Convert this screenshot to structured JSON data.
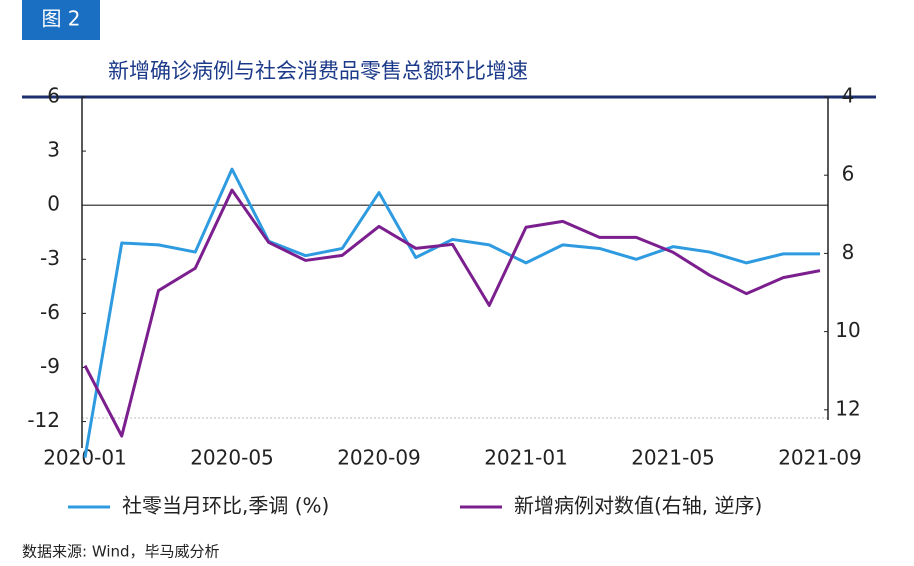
{
  "badge": "图 2",
  "source": "数据来源: Wind，毕马威分析",
  "chart_data": {
    "type": "line",
    "title": "新增确诊病例与社会消费品零售总额环比增速",
    "categories": [
      "2020-01",
      null,
      null,
      null,
      "2020-05",
      null,
      null,
      null,
      "2020-09",
      null,
      null,
      null,
      "2021-01",
      null,
      null,
      null,
      "2021-05",
      null,
      null,
      null,
      "2021-09"
    ],
    "series": [
      {
        "name": "社零当月环比,季调  (%)",
        "color": "#2e9be0",
        "values": [
          -14,
          -2.1,
          -2.2,
          -2.6,
          2.0,
          -2.0,
          -2.8,
          -2.4,
          0.7,
          -2.9,
          -1.9,
          -2.2,
          -3.2,
          -2.2,
          -2.4,
          -3.0,
          -2.3,
          -2.6,
          -3.2,
          -2.7,
          -2.7
        ]
      },
      {
        "name": "新增病例对数值(右轴, 逆序)",
        "color": "#7b1f8e",
        "axis": "y2",
        "values": [
          10.87,
          12.67,
          8.95,
          8.38,
          6.38,
          7.72,
          8.18,
          8.05,
          7.31,
          7.87,
          7.77,
          9.33,
          7.33,
          7.18,
          7.59,
          7.59,
          7.97,
          8.56,
          9.03,
          8.62,
          8.44
        ]
      }
    ],
    "ylim": [
      -13.3,
      6
    ],
    "yticks": [
      6,
      3,
      0,
      -3,
      -6,
      -9,
      -12
    ],
    "y2lim": [
      4,
      12.9
    ],
    "y2ticks": [
      4,
      6,
      8,
      10,
      12
    ],
    "y2_inverted": true,
    "legend": "bottom"
  }
}
